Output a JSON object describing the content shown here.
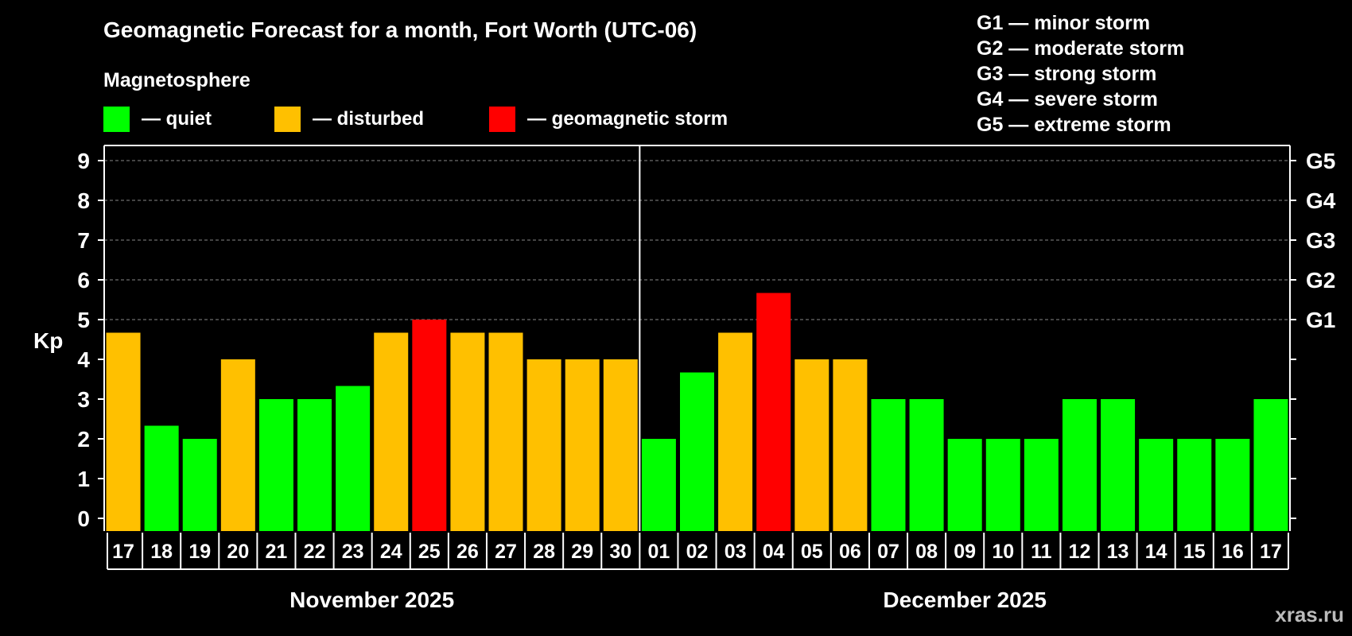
{
  "colors": {
    "background": "#000000",
    "quiet": "#00FF00",
    "disturbed": "#FFC000",
    "storm": "#FF0000",
    "text": "#FFFFFF",
    "grid": "#888888",
    "watermark": "#BBBBBB"
  },
  "chart_data": {
    "type": "bar",
    "title": "Geomagnetic Forecast for a month, Fort Worth (UTC-06)",
    "ylabel": "Kp",
    "ylim": [
      0,
      9
    ],
    "y_ticks": [
      "0",
      "1",
      "2",
      "3",
      "4",
      "5",
      "6",
      "7",
      "8",
      "9"
    ],
    "right_ticks": [
      {
        "kp": 5,
        "label": "G1"
      },
      {
        "kp": 6,
        "label": "G2"
      },
      {
        "kp": 7,
        "label": "G3"
      },
      {
        "kp": 8,
        "label": "G4"
      },
      {
        "kp": 9,
        "label": "G5"
      }
    ],
    "gridlines_at": [
      5,
      6,
      7,
      8,
      9
    ],
    "legend_title": "Magnetosphere",
    "legend": [
      {
        "level": "quiet",
        "label": "— quiet"
      },
      {
        "level": "disturbed",
        "label": "— disturbed"
      },
      {
        "level": "storm",
        "label": "— geomagnetic storm"
      }
    ],
    "storm_scale": [
      "G1 — minor storm",
      "G2 — moderate storm",
      "G3 — strong storm",
      "G4 — severe storm",
      "G5 — extreme storm"
    ],
    "categories": [
      "17",
      "18",
      "19",
      "20",
      "21",
      "22",
      "23",
      "24",
      "25",
      "26",
      "27",
      "28",
      "29",
      "30",
      "01",
      "02",
      "03",
      "04",
      "05",
      "06",
      "07",
      "08",
      "09",
      "10",
      "11",
      "12",
      "13",
      "14",
      "15",
      "16",
      "17"
    ],
    "values": [
      4.67,
      2.33,
      2,
      4,
      3,
      3,
      3.33,
      4.67,
      5,
      4.67,
      4.67,
      4,
      4,
      4,
      2,
      3.67,
      4.67,
      5.67,
      4,
      4,
      3,
      3,
      2,
      2,
      2,
      3,
      3,
      2,
      2,
      2,
      3
    ],
    "levels": [
      "disturbed",
      "quiet",
      "quiet",
      "disturbed",
      "quiet",
      "quiet",
      "quiet",
      "disturbed",
      "storm",
      "disturbed",
      "disturbed",
      "disturbed",
      "disturbed",
      "disturbed",
      "quiet",
      "quiet",
      "disturbed",
      "storm",
      "disturbed",
      "disturbed",
      "quiet",
      "quiet",
      "quiet",
      "quiet",
      "quiet",
      "quiet",
      "quiet",
      "quiet",
      "quiet",
      "quiet",
      "quiet"
    ],
    "months": [
      {
        "label": "November 2025",
        "start_index": 0,
        "count": 14
      },
      {
        "label": "December 2025",
        "start_index": 14,
        "count": 17
      }
    ]
  },
  "watermark": "xras.ru"
}
